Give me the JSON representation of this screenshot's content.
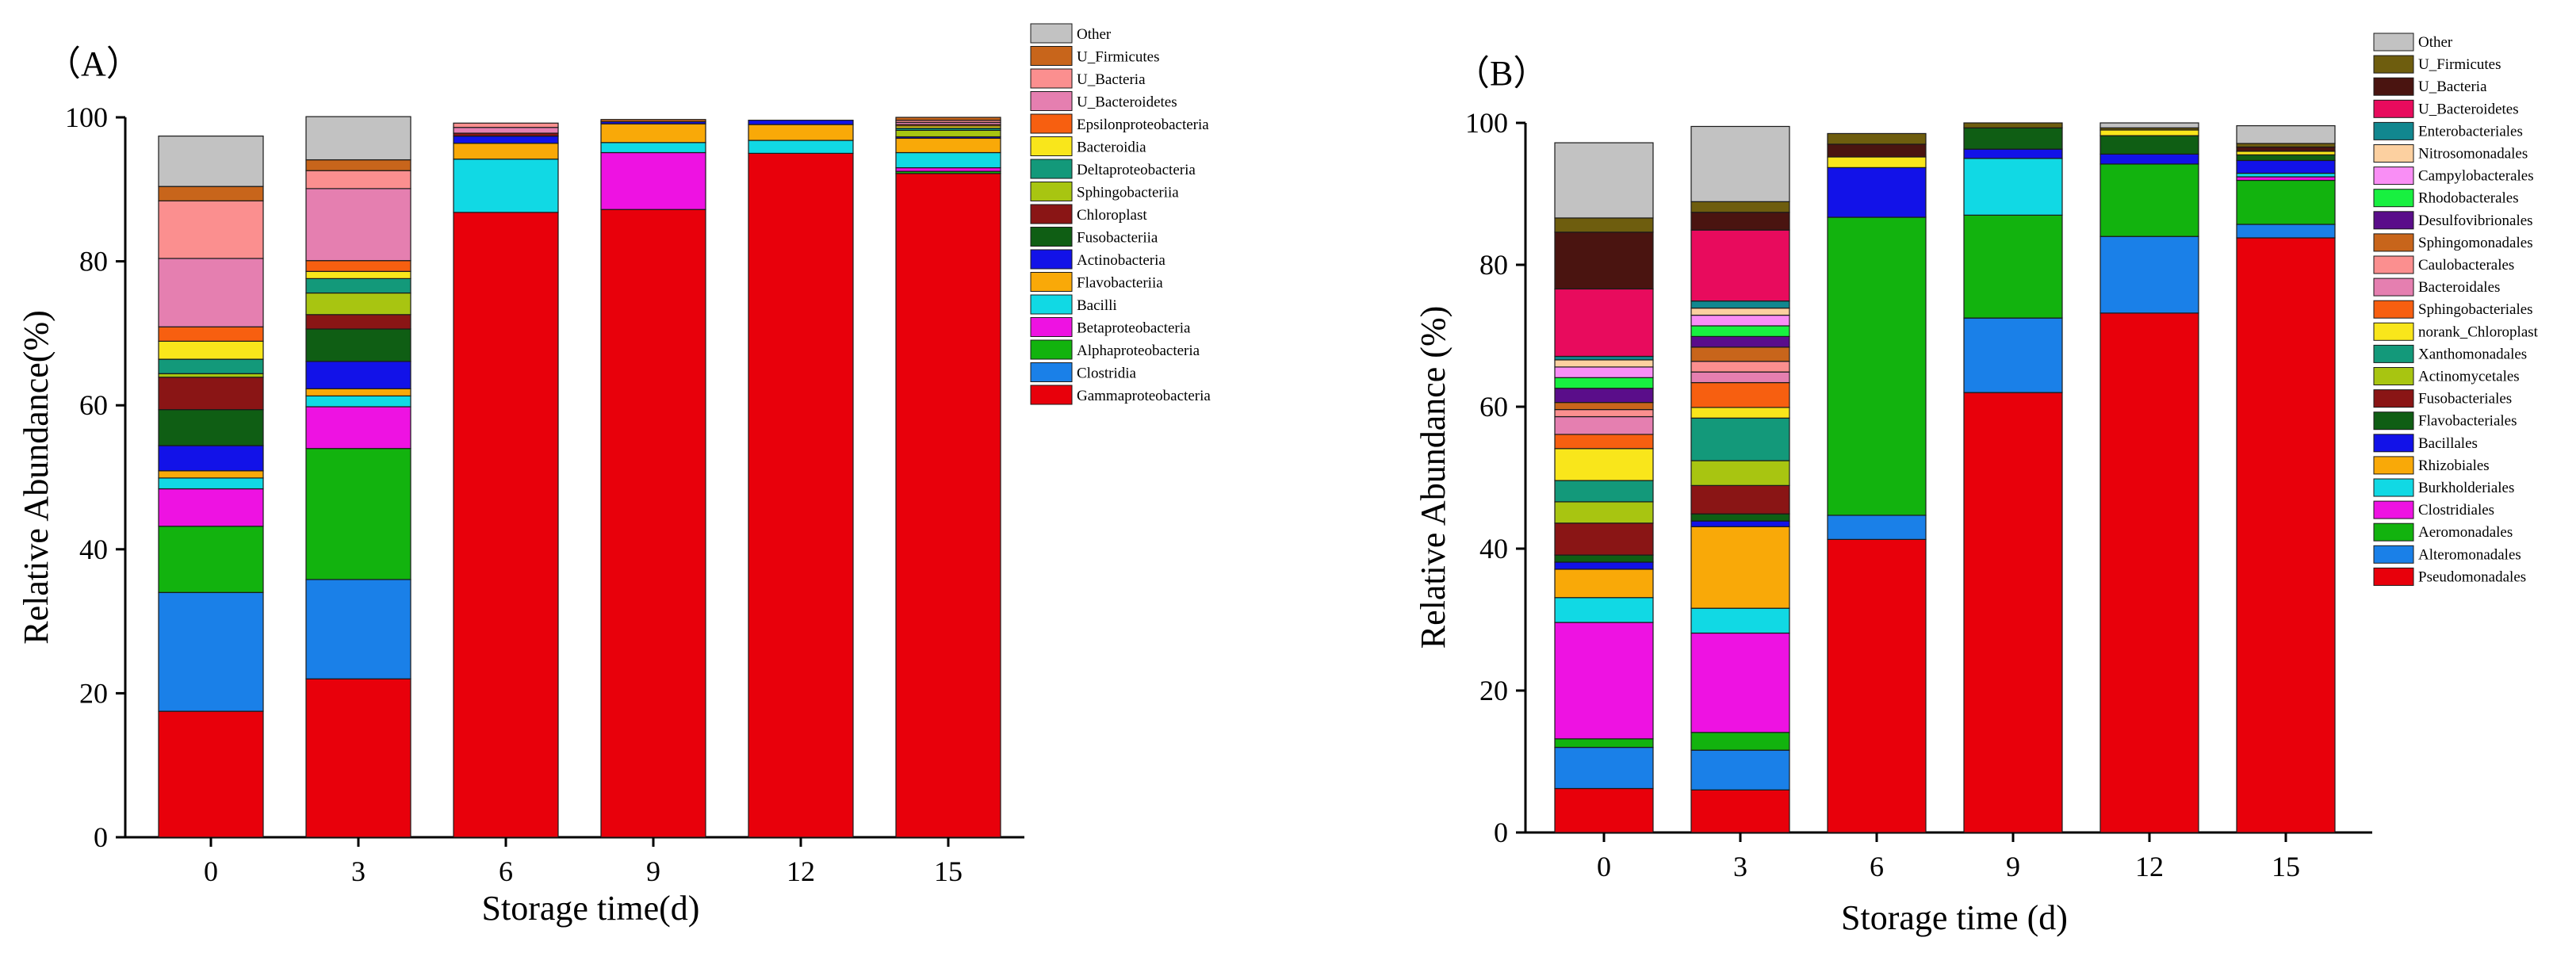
{
  "figure": {
    "panel_a_label": "（A）",
    "panel_b_label": "（B）"
  },
  "chart_data": [
    {
      "type": "bar",
      "stacked": true,
      "title": "",
      "panel": "（A）",
      "xlabel": "Storage time(d)",
      "ylabel": "Relative Abundance(%)",
      "ylim": [
        0,
        100
      ],
      "yticks": [
        0,
        20,
        40,
        60,
        80,
        100
      ],
      "categories": [
        "0",
        "3",
        "6",
        "9",
        "12",
        "15"
      ],
      "legend_position": "right",
      "series": [
        {
          "name": "Gammaproteobacteria",
          "color": "#e8000b",
          "values": [
            17.5,
            22,
            86.8,
            87.2,
            95,
            92.2
          ]
        },
        {
          "name": "Clostridia",
          "color": "#1a80e8",
          "values": [
            16.5,
            13.8,
            0,
            0,
            0,
            0
          ]
        },
        {
          "name": "Alphaproteobacteria",
          "color": "#12b30e",
          "values": [
            9.2,
            18.2,
            0,
            0,
            0,
            0.3
          ]
        },
        {
          "name": "Betaproteobacteria",
          "color": "#ee12e2",
          "values": [
            5.2,
            5.8,
            0,
            7.9,
            0,
            0.5
          ]
        },
        {
          "name": "Bacilli",
          "color": "#11d9e4",
          "values": [
            1.5,
            1.5,
            7.4,
            1.4,
            1.8,
            2.1
          ]
        },
        {
          "name": "Flavobacteriia",
          "color": "#f9a908",
          "values": [
            1.0,
            1.0,
            2.2,
            2.6,
            2.2,
            2.0
          ]
        },
        {
          "name": "Actinobacteria",
          "color": "#1212e8",
          "values": [
            3.5,
            3.8,
            1.0,
            0.3,
            0.6,
            0.2
          ]
        },
        {
          "name": "Fusobacteriia",
          "color": "#0f5e14",
          "values": [
            5.0,
            4.5,
            0,
            0,
            0,
            0
          ]
        },
        {
          "name": "Chloroplast",
          "color": "#8a1515",
          "values": [
            4.5,
            2.0,
            0.4,
            0,
            0,
            0
          ]
        },
        {
          "name": "Sphingobacteriia",
          "color": "#a8c511",
          "values": [
            0.5,
            3.0,
            0,
            0,
            0,
            0.9
          ]
        },
        {
          "name": "Deltaproteobacteria",
          "color": "#13997a",
          "values": [
            2.0,
            2.0,
            0,
            0,
            0,
            0.3
          ]
        },
        {
          "name": "Bacteroidia",
          "color": "#f9e61b",
          "values": [
            2.5,
            1.0,
            0,
            0,
            0,
            0.3
          ]
        },
        {
          "name": "Epsilonproteobacteria",
          "color": "#f75f10",
          "values": [
            2.0,
            1.5,
            0,
            0,
            0,
            0.2
          ]
        },
        {
          "name": "U_Bacteroidetes",
          "color": "#e57fb0",
          "values": [
            9.5,
            10.0,
            0.8,
            0,
            0,
            0.3
          ]
        },
        {
          "name": "U_Bacteria",
          "color": "#fb8f8f",
          "values": [
            8.0,
            2.5,
            0.6,
            0,
            0,
            0.3
          ]
        },
        {
          "name": "U_Firmicutes",
          "color": "#c8651b",
          "values": [
            2.0,
            1.5,
            0,
            0.3,
            0,
            0.4
          ]
        },
        {
          "name": "Other",
          "color": "#c2c2c2",
          "values": [
            7.0,
            6.0,
            0,
            0,
            0,
            0
          ]
        }
      ]
    },
    {
      "type": "bar",
      "stacked": true,
      "title": "",
      "panel": "（B）",
      "xlabel": "Storage time (d)",
      "ylabel": "Relative Abundance (%)",
      "ylim": [
        0,
        100
      ],
      "yticks": [
        0,
        20,
        40,
        60,
        80,
        100
      ],
      "categories": [
        "0",
        "3",
        "6",
        "9",
        "12",
        "15"
      ],
      "legend_position": "right",
      "series": [
        {
          "name": "Pseudomonadales",
          "color": "#e8000b",
          "values": [
            6.2,
            6.0,
            41.3,
            62.0,
            73.2,
            83.8
          ]
        },
        {
          "name": "Alteromonadales",
          "color": "#1a80e8",
          "values": [
            5.8,
            5.6,
            3.4,
            10.5,
            10.8,
            1.9
          ]
        },
        {
          "name": "Aeromonadales",
          "color": "#12b30e",
          "values": [
            1.2,
            2.5,
            42.0,
            14.5,
            10.2,
            6.2
          ]
        },
        {
          "name": "Clostridiales",
          "color": "#ee12e2",
          "values": [
            16.4,
            14.0,
            0,
            0,
            0,
            0.5
          ]
        },
        {
          "name": "Burkholderiales",
          "color": "#11d9e4",
          "values": [
            3.5,
            3.5,
            0,
            8.0,
            0,
            0.5
          ]
        },
        {
          "name": "Rhizobiales",
          "color": "#f9a908",
          "values": [
            4.0,
            11.5,
            0,
            0,
            0,
            0
          ]
        },
        {
          "name": "Bacillales",
          "color": "#1212e8",
          "values": [
            1.0,
            0.8,
            7.0,
            1.3,
            1.4,
            1.8
          ]
        },
        {
          "name": "Flavobacteriales",
          "color": "#0f5e14",
          "values": [
            1.0,
            1.0,
            0,
            3.0,
            2.6,
            0.8
          ]
        },
        {
          "name": "Fusobacteriales",
          "color": "#8a1515",
          "values": [
            4.5,
            4.0,
            0,
            0,
            0,
            0
          ]
        },
        {
          "name": "Actinomycetales",
          "color": "#a8c511",
          "values": [
            3.0,
            3.5,
            0,
            0,
            0,
            0
          ]
        },
        {
          "name": "Xanthomonadales",
          "color": "#13997a",
          "values": [
            3.0,
            6.0,
            0,
            0,
            0,
            0
          ]
        },
        {
          "name": "norank_Chloroplast",
          "color": "#f9e61b",
          "values": [
            4.5,
            1.5,
            1.5,
            0,
            0.8,
            0.5
          ]
        },
        {
          "name": "Sphingobacteriales",
          "color": "#f75f10",
          "values": [
            2.0,
            3.5,
            0,
            0,
            0,
            0
          ]
        },
        {
          "name": "Bacteroidales",
          "color": "#e57fb0",
          "values": [
            2.5,
            1.5,
            0,
            0,
            0,
            0
          ]
        },
        {
          "name": "Caulobacterales",
          "color": "#fb8f8f",
          "values": [
            1.0,
            1.5,
            0,
            0,
            0,
            0
          ]
        },
        {
          "name": "Sphingomonadales",
          "color": "#c8651b",
          "values": [
            1.0,
            2.0,
            0,
            0,
            0,
            0
          ]
        },
        {
          "name": "Desulfovibrionales",
          "color": "#5a0d8a",
          "values": [
            2.0,
            1.5,
            0,
            0,
            0,
            0
          ]
        },
        {
          "name": "Rhodobacterales",
          "color": "#18f040",
          "values": [
            1.5,
            1.5,
            0,
            0,
            0,
            0
          ]
        },
        {
          "name": "Campylobacterales",
          "color": "#f98ef5",
          "values": [
            1.5,
            1.5,
            0,
            0,
            0,
            0
          ]
        },
        {
          "name": "Nitrosomonadales",
          "color": "#fcd0a0",
          "values": [
            1.0,
            1.0,
            0,
            0,
            0,
            0
          ]
        },
        {
          "name": "Enterobacteriales",
          "color": "#11878f",
          "values": [
            0.5,
            1.0,
            0,
            0,
            0,
            0
          ]
        },
        {
          "name": "U_Bacteroidetes",
          "color": "#e80b5d",
          "values": [
            9.5,
            10.0,
            0,
            0,
            0,
            0
          ]
        },
        {
          "name": "U_Bacteria",
          "color": "#4a1410",
          "values": [
            8.0,
            2.5,
            1.8,
            0,
            0,
            0.6
          ]
        },
        {
          "name": "U_Firmicutes",
          "color": "#6e5d0e",
          "values": [
            2.0,
            1.5,
            1.5,
            0.7,
            0.3,
            0.5
          ]
        },
        {
          "name": "Other",
          "color": "#c2c2c2",
          "values": [
            10.6,
            10.6,
            0,
            0,
            0.7,
            2.5
          ]
        }
      ]
    }
  ]
}
